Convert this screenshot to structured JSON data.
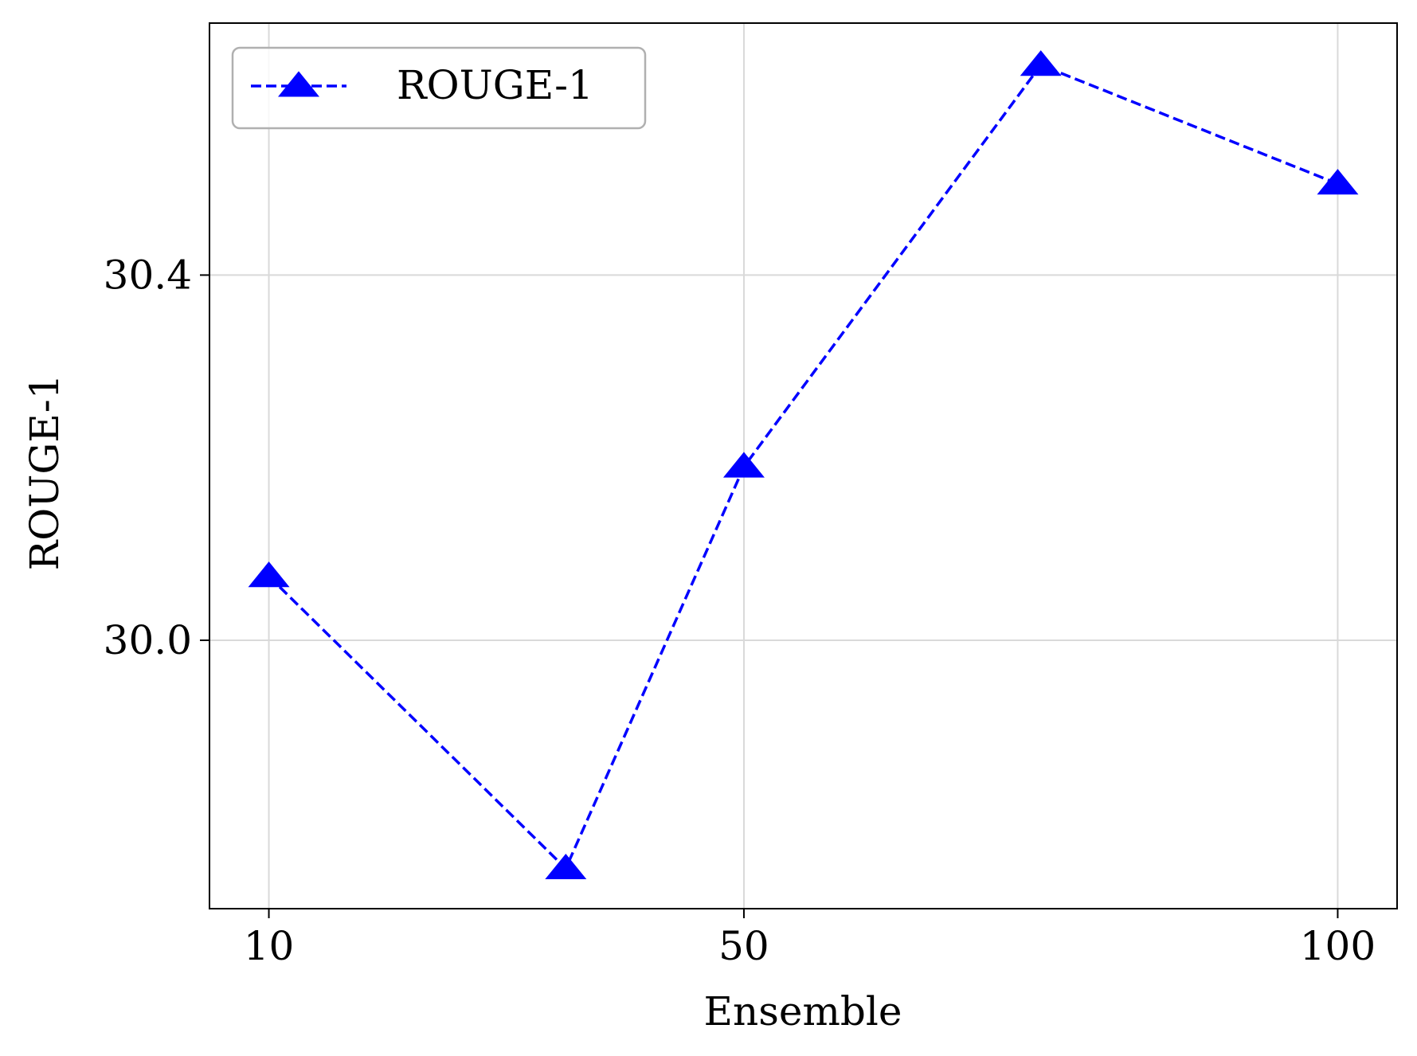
{
  "chart_data": {
    "type": "line",
    "title": "",
    "xlabel": "Ensemble",
    "ylabel": "ROUGE-1",
    "x_ticks": [
      10,
      50,
      100
    ],
    "x_tick_labels": [
      "10",
      "50",
      "100"
    ],
    "y_ticks": [
      30.0,
      30.4
    ],
    "y_tick_labels": [
      "30.0",
      "30.4"
    ],
    "xlim": [
      5,
      105
    ],
    "ylim": [
      29.706,
      30.676
    ],
    "grid": true,
    "legend_position": "top-left",
    "series": [
      {
        "name": "ROUGE-1",
        "color": "#0000ff",
        "line_style": "dashed",
        "marker": "triangle-up",
        "x": [
          10,
          35,
          50,
          75,
          100
        ],
        "y": [
          30.07,
          29.75,
          30.19,
          30.63,
          30.5
        ]
      }
    ]
  }
}
